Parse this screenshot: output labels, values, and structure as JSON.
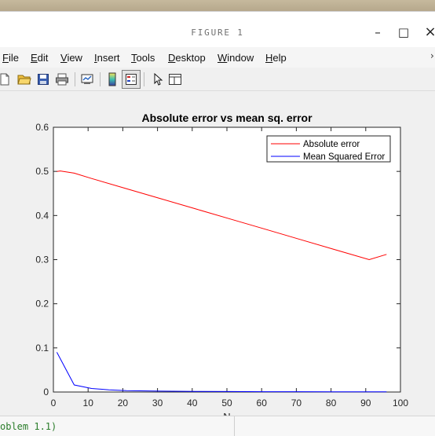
{
  "window": {
    "title": "FIGURE 1",
    "minimize_label": "–",
    "maximize_label": "□",
    "close_label": "×"
  },
  "menu": {
    "items": [
      {
        "accel": "F",
        "rest": "ile"
      },
      {
        "accel": "E",
        "rest": "dit"
      },
      {
        "accel": "V",
        "rest": "iew"
      },
      {
        "accel": "I",
        "rest": "nsert"
      },
      {
        "accel": "T",
        "rest": "ools"
      },
      {
        "accel": "D",
        "rest": "esktop"
      },
      {
        "accel": "W",
        "rest": "indow"
      },
      {
        "accel": "H",
        "rest": "elp"
      }
    ],
    "overflow_icon": "chevron-icon"
  },
  "toolbar": {
    "icons": [
      "new-figure-icon",
      "open-file-icon",
      "save-icon",
      "print-icon",
      "link-plot-icon",
      "insert-colorbar-icon",
      "insert-legend-icon",
      "edit-plot-icon",
      "property-editor-icon"
    ]
  },
  "console": {
    "text": "oblem 1.1)"
  },
  "chart_data": {
    "type": "line",
    "title": "Absolute error vs mean sq. error",
    "xlabel": "N",
    "ylabel": "",
    "xlim": [
      0,
      100
    ],
    "ylim": [
      0,
      0.6
    ],
    "xticks": [
      "0",
      "10",
      "20",
      "30",
      "40",
      "50",
      "60",
      "70",
      "80",
      "90",
      "100"
    ],
    "yticks": [
      "0",
      "0.1",
      "0.2",
      "0.3",
      "0.4",
      "0.5",
      "0.6"
    ],
    "grid": false,
    "legend_position": "top-right",
    "series": [
      {
        "name": "Absolute error",
        "color": "#ff0000",
        "x": [
          1,
          2,
          6,
          11,
          21,
          31,
          41,
          51,
          61,
          71,
          81,
          91,
          96
        ],
        "y": [
          0.5,
          0.501,
          0.496,
          0.484,
          0.461,
          0.438,
          0.415,
          0.392,
          0.369,
          0.346,
          0.323,
          0.3,
          0.312
        ]
      },
      {
        "name": "Mean Squared Error",
        "color": "#0000ff",
        "x": [
          1,
          6,
          11,
          16,
          21,
          31,
          41,
          51,
          61,
          71,
          81,
          91,
          96
        ],
        "y": [
          0.09,
          0.016,
          0.008,
          0.005,
          0.003,
          0.002,
          0.0015,
          0.001,
          0.0008,
          0.0007,
          0.0006,
          0.0005,
          0.0005
        ]
      }
    ]
  }
}
